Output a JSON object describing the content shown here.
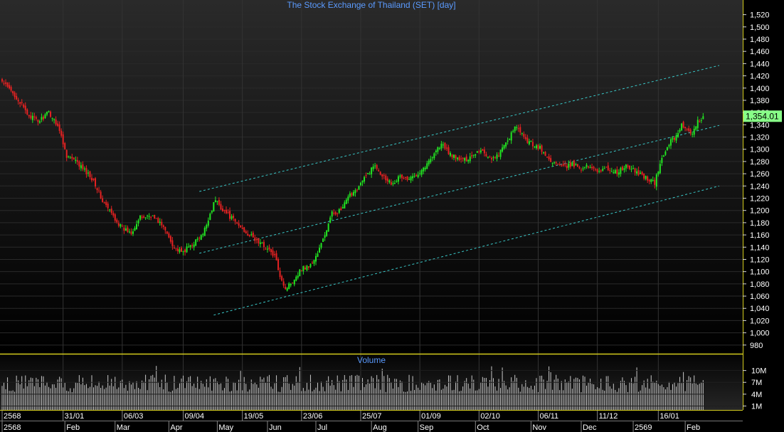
{
  "chart_data": {
    "type": "candlestick",
    "title": "The Stock Exchange of Thailand (SET) [day]",
    "price_axis": {
      "ticks": [
        "1,520",
        "1,500",
        "1,480",
        "1,460",
        "1,440",
        "1,420",
        "1,400",
        "1,380",
        "1,360",
        "1,340",
        "1,320",
        "1,300",
        "1,280",
        "1,260",
        "1,240",
        "1,220",
        "1,200",
        "1,180",
        "1,160",
        "1,140",
        "1,120",
        "1,100",
        "1,080",
        "1,060",
        "1,040",
        "1,020",
        "1,000",
        "980"
      ],
      "tick_values": [
        1520,
        1500,
        1480,
        1460,
        1440,
        1420,
        1400,
        1380,
        1360,
        1340,
        1320,
        1300,
        1280,
        1260,
        1240,
        1220,
        1200,
        1180,
        1160,
        1140,
        1120,
        1100,
        1080,
        1060,
        1040,
        1020,
        1000,
        980
      ],
      "range": [
        967,
        1530
      ]
    },
    "last_price_label": "1,354.01",
    "last_price": 1354.01,
    "price_anchors": [
      [
        0,
        1410
      ],
      [
        8,
        1385
      ],
      [
        14,
        1358
      ],
      [
        20,
        1345
      ],
      [
        26,
        1360
      ],
      [
        31,
        1340
      ],
      [
        36,
        1290
      ],
      [
        41,
        1280
      ],
      [
        46,
        1265
      ],
      [
        51,
        1250
      ],
      [
        56,
        1215
      ],
      [
        61,
        1195
      ],
      [
        67,
        1170
      ],
      [
        72,
        1165
      ],
      [
        77,
        1188
      ],
      [
        83,
        1192
      ],
      [
        88,
        1180
      ],
      [
        92,
        1162
      ],
      [
        96,
        1140
      ],
      [
        100,
        1130
      ],
      [
        104,
        1140
      ],
      [
        108,
        1150
      ],
      [
        112,
        1160
      ],
      [
        116,
        1195
      ],
      [
        119,
        1218
      ],
      [
        122,
        1205
      ],
      [
        127,
        1190
      ],
      [
        132,
        1175
      ],
      [
        137,
        1162
      ],
      [
        142,
        1150
      ],
      [
        147,
        1140
      ],
      [
        152,
        1125
      ],
      [
        155,
        1095
      ],
      [
        158,
        1072
      ],
      [
        162,
        1085
      ],
      [
        167,
        1105
      ],
      [
        172,
        1110
      ],
      [
        176,
        1130
      ],
      [
        180,
        1160
      ],
      [
        184,
        1195
      ],
      [
        189,
        1200
      ],
      [
        194,
        1225
      ],
      [
        199,
        1240
      ],
      [
        204,
        1260
      ],
      [
        208,
        1275
      ],
      [
        212,
        1258
      ],
      [
        217,
        1245
      ],
      [
        222,
        1255
      ],
      [
        227,
        1250
      ],
      [
        232,
        1262
      ],
      [
        237,
        1275
      ],
      [
        241,
        1295
      ],
      [
        245,
        1308
      ],
      [
        249,
        1295
      ],
      [
        253,
        1285
      ],
      [
        258,
        1282
      ],
      [
        262,
        1290
      ],
      [
        267,
        1300
      ],
      [
        271,
        1288
      ],
      [
        275,
        1285
      ],
      [
        279,
        1300
      ],
      [
        283,
        1320
      ],
      [
        287,
        1338
      ],
      [
        291,
        1318
      ],
      [
        295,
        1310
      ],
      [
        300,
        1302
      ],
      [
        304,
        1285
      ],
      [
        308,
        1278
      ],
      [
        313,
        1270
      ],
      [
        318,
        1275
      ],
      [
        323,
        1270
      ],
      [
        328,
        1272
      ],
      [
        333,
        1265
      ],
      [
        338,
        1268
      ],
      [
        343,
        1262
      ],
      [
        348,
        1272
      ],
      [
        353,
        1264
      ],
      [
        357,
        1258
      ],
      [
        361,
        1250
      ],
      [
        364,
        1245
      ],
      [
        368,
        1285
      ],
      [
        372,
        1310
      ],
      [
        376,
        1322
      ],
      [
        379,
        1340
      ],
      [
        382,
        1330
      ],
      [
        385,
        1322
      ],
      [
        388,
        1345
      ],
      [
        391,
        1354
      ]
    ],
    "channel_lines": [
      {
        "from": [
          110,
          1231
        ],
        "to": [
          400,
          1437
        ]
      },
      {
        "from": [
          110,
          1130
        ],
        "to": [
          400,
          1339
        ]
      },
      {
        "from": [
          118,
          1029
        ],
        "to": [
          400,
          1240
        ]
      }
    ],
    "time_axis_upper": [
      {
        "label": "2568",
        "bar": 0
      },
      {
        "label": "31/01",
        "bar": 34
      },
      {
        "label": "06/03",
        "bar": 67
      },
      {
        "label": "09/04",
        "bar": 101
      },
      {
        "label": "19/05",
        "bar": 134
      },
      {
        "label": "23/06",
        "bar": 167
      },
      {
        "label": "25/07",
        "bar": 200
      },
      {
        "label": "01/09",
        "bar": 233
      },
      {
        "label": "02/10",
        "bar": 266
      },
      {
        "label": "06/11",
        "bar": 299
      },
      {
        "label": "11/12",
        "bar": 332
      },
      {
        "label": "16/01",
        "bar": 366
      }
    ],
    "time_axis_lower": [
      {
        "label": "2568",
        "bar": 0
      },
      {
        "label": "Feb",
        "bar": 35
      },
      {
        "label": "Mar",
        "bar": 63
      },
      {
        "label": "Apr",
        "bar": 93
      },
      {
        "label": "May",
        "bar": 120
      },
      {
        "label": "Jun",
        "bar": 148
      },
      {
        "label": "Jul",
        "bar": 175
      },
      {
        "label": "Aug",
        "bar": 206
      },
      {
        "label": "Sep",
        "bar": 232
      },
      {
        "label": "Oct",
        "bar": 264
      },
      {
        "label": "Nov",
        "bar": 295
      },
      {
        "label": "Dec",
        "bar": 323
      },
      {
        "label": "2569",
        "bar": 352
      },
      {
        "label": "Feb",
        "bar": 381
      }
    ],
    "volume_panel": {
      "title": "Volume",
      "ticks": [
        "10M",
        "7M",
        "4M",
        "1M"
      ],
      "tick_values": [
        10,
        7,
        4,
        1
      ],
      "range": [
        0,
        13
      ],
      "unit": "M"
    },
    "colors": {
      "up": "#22e622",
      "down": "#e62222",
      "channel": "#39c7c7",
      "title": "#5b9bff",
      "axis_text": "#ffffff",
      "separator": "#d4cc1e",
      "last_price_bg": "#88ff88",
      "volume": "#c8c8c8",
      "grid": "#2a2a2a"
    }
  }
}
